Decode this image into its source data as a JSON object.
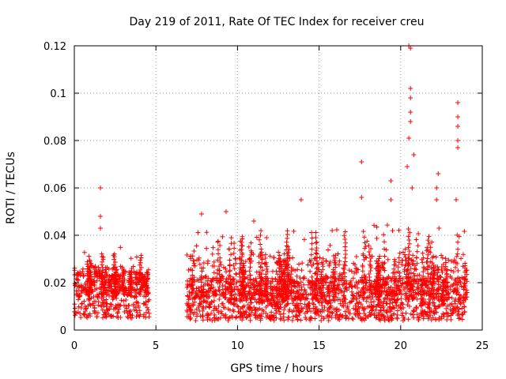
{
  "chart_data": {
    "type": "scatter",
    "title": "Day 219 of 2011, Rate Of TEC Index for receiver creu",
    "xlabel": "GPS time / hours",
    "ylabel": "ROTI / TECUs",
    "xlim": [
      0,
      25
    ],
    "ylim": [
      0,
      0.12
    ],
    "xticks": [
      0,
      5,
      10,
      15,
      20,
      25
    ],
    "xtick_labels": [
      "0",
      "5",
      "10",
      "15",
      "20",
      "25"
    ],
    "yticks": [
      0,
      0.02,
      0.04,
      0.06,
      0.08,
      0.1,
      0.12
    ],
    "ytick_labels": [
      "0",
      "0.02",
      "0.04",
      "0.06",
      "0.08",
      "0.1",
      "0.12"
    ],
    "grid": true,
    "marker": "+",
    "color": "#ff0000",
    "series": [
      {
        "name": "ROTI",
        "segments": [
          {
            "x_start": 0.0,
            "x_end": 4.6,
            "y_min": 0.005,
            "y_typical": 0.015,
            "y_max": 0.035
          },
          {
            "x_start": 6.9,
            "x_end": 24.0,
            "y_min": 0.004,
            "y_typical": 0.013,
            "y_max": 0.045
          }
        ],
        "peaks": [
          {
            "x": 1.6,
            "y": 0.06
          },
          {
            "x": 1.6,
            "y": 0.048
          },
          {
            "x": 1.6,
            "y": 0.043
          },
          {
            "x": 7.8,
            "y": 0.049
          },
          {
            "x": 9.3,
            "y": 0.05
          },
          {
            "x": 11.0,
            "y": 0.046
          },
          {
            "x": 13.9,
            "y": 0.055
          },
          {
            "x": 15.8,
            "y": 0.042
          },
          {
            "x": 17.6,
            "y": 0.071
          },
          {
            "x": 17.6,
            "y": 0.056
          },
          {
            "x": 19.4,
            "y": 0.063
          },
          {
            "x": 19.4,
            "y": 0.055
          },
          {
            "x": 20.5,
            "y": 0.12
          },
          {
            "x": 20.6,
            "y": 0.119
          },
          {
            "x": 20.6,
            "y": 0.102
          },
          {
            "x": 20.6,
            "y": 0.098
          },
          {
            "x": 20.6,
            "y": 0.092
          },
          {
            "x": 20.6,
            "y": 0.088
          },
          {
            "x": 20.5,
            "y": 0.081
          },
          {
            "x": 20.8,
            "y": 0.074
          },
          {
            "x": 20.4,
            "y": 0.069
          },
          {
            "x": 20.7,
            "y": 0.06
          },
          {
            "x": 22.3,
            "y": 0.066
          },
          {
            "x": 22.2,
            "y": 0.06
          },
          {
            "x": 22.2,
            "y": 0.055
          },
          {
            "x": 23.5,
            "y": 0.096
          },
          {
            "x": 23.5,
            "y": 0.09
          },
          {
            "x": 23.5,
            "y": 0.086
          },
          {
            "x": 23.5,
            "y": 0.08
          },
          {
            "x": 23.5,
            "y": 0.077
          },
          {
            "x": 23.4,
            "y": 0.055
          }
        ]
      }
    ]
  }
}
